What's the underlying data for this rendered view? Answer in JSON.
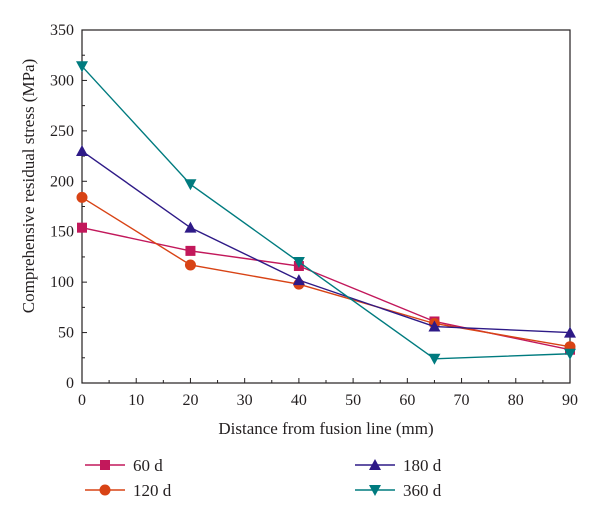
{
  "chart_data": {
    "type": "line",
    "xlabel": "Distance from fusion line (mm)",
    "ylabel": "Comprehensive residual stress (MPa)",
    "xlim": [
      0,
      90
    ],
    "ylim": [
      0,
      350
    ],
    "xticks": [
      0,
      10,
      20,
      30,
      40,
      50,
      60,
      70,
      80,
      90
    ],
    "yticks": [
      0,
      50,
      100,
      150,
      200,
      250,
      300,
      350
    ],
    "x": [
      0,
      20,
      40,
      65,
      90
    ],
    "grid": false,
    "legend_position": "bottom",
    "series": [
      {
        "name": "60 d",
        "marker": "square",
        "color": "#c2185b",
        "values": [
          154,
          131,
          116,
          61,
          33
        ]
      },
      {
        "name": "120 d",
        "marker": "circle",
        "color": "#d84315",
        "values": [
          184,
          117,
          98,
          59,
          36
        ]
      },
      {
        "name": "180 d",
        "marker": "triangle-up",
        "color": "#2e1a87",
        "values": [
          230,
          154,
          102,
          56,
          50
        ]
      },
      {
        "name": "360 d",
        "marker": "triangle-down",
        "color": "#007b7f",
        "values": [
          314,
          197,
          120,
          24,
          29
        ]
      }
    ]
  }
}
